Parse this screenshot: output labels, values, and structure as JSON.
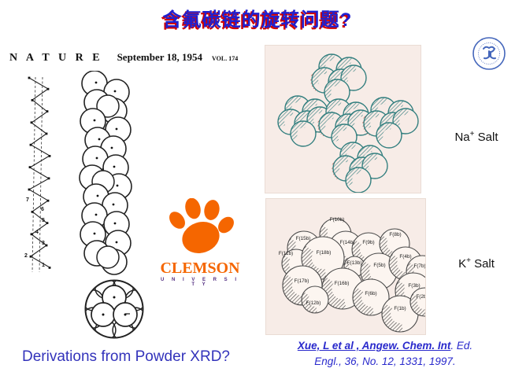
{
  "title": "含氟碳链的旋转问题?",
  "colors": {
    "title_blue": "#2020d0",
    "title_shadow_red": "#d00000",
    "citation_blue": "#2929cc",
    "question_blue": "#3333bb",
    "clemson_orange": "#f56600",
    "clemson_purple": "#522d80",
    "model_teal": "#2e7b7b",
    "model_red": "#b03a2e",
    "photo_background": "#f7ece7"
  },
  "nature_header": {
    "journal": "N A T U R E",
    "date": "September 18, 1954",
    "volume": "VOL. 174"
  },
  "nature_figure": {
    "vertex_numbers": [
      "7",
      "6",
      "5",
      "4",
      "3",
      "2",
      "1"
    ]
  },
  "clemson": {
    "name": "CLEMSON",
    "subtitle": "U N I V E R S I T Y"
  },
  "na_salt": {
    "element": "Na",
    "charge": "+",
    "word": " Salt"
  },
  "k_salt": {
    "element": "K",
    "charge": "+",
    "word": " Salt",
    "atom_labels": [
      "F(10b)",
      "F(15b)",
      "F(11b)",
      "F(14b)",
      "F(18b)",
      "F(9b)",
      "F(8b)",
      "F(13b)",
      "F(5b)",
      "F(4b)",
      "F(7b)",
      "F(17b)",
      "F(16b)",
      "F(3b)",
      "F(12b)",
      "F(6b)",
      "F(1b)",
      "F(2b)"
    ]
  },
  "question": "Derivations from Powder XRD?",
  "citation": {
    "line1_link": "Xue, L et al ,  Angew. Chem. Int",
    "line1_rest": ". Ed.",
    "line2": "Engl., 36, No. 12, 1331, 1997."
  }
}
